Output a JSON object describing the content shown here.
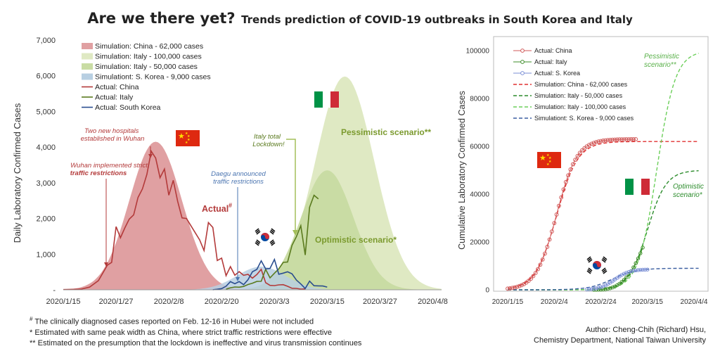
{
  "header": {
    "title_main": "Are we there yet?",
    "title_sub": "Trends prediction of COVID-19 outbreaks in South Korea and Italy"
  },
  "chart_data": [
    {
      "type": "area",
      "ylabel": "Daily Laboratory Confirmed Cases",
      "ylim": [
        0,
        7000
      ],
      "yticks": [
        "-",
        "1,000",
        "2,000",
        "3,000",
        "4,000",
        "5,000",
        "6,000",
        "7,000"
      ],
      "xticks": [
        "2020/1/15",
        "2020/1/27",
        "2020/2/8",
        "2020/2/20",
        "2020/3/3",
        "2020/3/15",
        "2020/3/27",
        "2020/4/8"
      ],
      "legend_position": "top-left",
      "legend": [
        "Simulation: China - 62,000 cases",
        "Simulation: Italy - 100,000 cases",
        "Simulation: Italy - 50,000 cases",
        "Simulationt: S. Korea - 9,000 cases",
        "Actual: China",
        "Actual: Italy",
        "Actual: South Korea"
      ],
      "simulations": [
        {
          "name": "Simulation: China - 62,000 cases",
          "peak_date": "2020/2/5",
          "peak": 4150,
          "total": 62000,
          "color": "#e0a0a2"
        },
        {
          "name": "Simulation: Italy - 100,000 cases",
          "peak_date": "2020/3/19",
          "peak": 5980,
          "total": 100000,
          "color": "#dfe9c3"
        },
        {
          "name": "Simulation: Italy - 50,000 cases",
          "peak_date": "2020/3/15",
          "peak": 3350,
          "total": 50000,
          "color": "#c9dca4"
        },
        {
          "name": "Simulationt: S. Korea - 9,000 cases",
          "peak_date": "2020/2/29",
          "peak": 650,
          "total": 9000,
          "color": "#b8cfe2"
        }
      ],
      "actual": [
        {
          "name": "Actual: China",
          "color": "#b33a3a",
          "points": [
            [
              "2020/1/15",
              5
            ],
            [
              "2020/1/19",
              17
            ],
            [
              "2020/1/21",
              77
            ],
            [
              "2020/1/23",
              259
            ],
            [
              "2020/1/25",
              688
            ],
            [
              "2020/1/26",
              769
            ],
            [
              "2020/1/27",
              1771
            ],
            [
              "2020/1/28",
              1459
            ],
            [
              "2020/1/29",
              1737
            ],
            [
              "2020/1/30",
              1982
            ],
            [
              "2020/1/31",
              2102
            ],
            [
              "2020/2/1",
              2590
            ],
            [
              "2020/2/2",
              2829
            ],
            [
              "2020/2/3",
              3235
            ],
            [
              "2020/2/4",
              3884
            ],
            [
              "2020/2/5",
              3694
            ],
            [
              "2020/2/6",
              3143
            ],
            [
              "2020/2/7",
              3385
            ],
            [
              "2020/2/8",
              2652
            ],
            [
              "2020/2/9",
              3070
            ],
            [
              "2020/2/10",
              2478
            ],
            [
              "2020/2/11",
              2015
            ],
            [
              "2020/2/12",
              2000
            ],
            [
              "2020/2/13",
              1800
            ],
            [
              "2020/2/14",
              1600
            ],
            [
              "2020/2/15",
              1400
            ],
            [
              "2020/2/16",
              1100
            ],
            [
              "2020/2/17",
              1886
            ],
            [
              "2020/2/18",
              1749
            ],
            [
              "2020/2/19",
              820
            ],
            [
              "2020/2/20",
              889
            ],
            [
              "2020/2/21",
              397
            ],
            [
              "2020/2/22",
              648
            ],
            [
              "2020/2/23",
              409
            ],
            [
              "2020/2/24",
              508
            ],
            [
              "2020/2/25",
              406
            ],
            [
              "2020/2/26",
              433
            ],
            [
              "2020/2/27",
              327
            ],
            [
              "2020/2/28",
              427
            ],
            [
              "2020/2/29",
              573
            ],
            [
              "2020/3/1",
              202
            ],
            [
              "2020/3/2",
              125
            ],
            [
              "2020/3/3",
              119
            ],
            [
              "2020/3/4",
              139
            ],
            [
              "2020/3/5",
              143
            ],
            [
              "2020/3/6",
              99
            ],
            [
              "2020/3/7",
              44
            ],
            [
              "2020/3/8",
              40
            ],
            [
              "2020/3/9",
              19
            ],
            [
              "2020/3/10",
              24
            ]
          ]
        },
        {
          "name": "Actual: Italy",
          "color": "#5a7a1e",
          "points": [
            [
              "2020/2/21",
              17
            ],
            [
              "2020/2/22",
              58
            ],
            [
              "2020/2/23",
              78
            ],
            [
              "2020/2/24",
              72
            ],
            [
              "2020/2/25",
              94
            ],
            [
              "2020/2/26",
              147
            ],
            [
              "2020/2/27",
              185
            ],
            [
              "2020/2/28",
              234
            ],
            [
              "2020/2/29",
              239
            ],
            [
              "2020/3/1",
              573
            ],
            [
              "2020/3/2",
              335
            ],
            [
              "2020/3/3",
              466
            ],
            [
              "2020/3/4",
              587
            ],
            [
              "2020/3/5",
              769
            ],
            [
              "2020/3/6",
              778
            ],
            [
              "2020/3/7",
              1247
            ],
            [
              "2020/3/8",
              1492
            ],
            [
              "2020/3/9",
              1797
            ],
            [
              "2020/3/10",
              977
            ],
            [
              "2020/3/11",
              2313
            ],
            [
              "2020/3/12",
              2651
            ],
            [
              "2020/3/13",
              2547
            ]
          ]
        },
        {
          "name": "Actual: South Korea",
          "color": "#2a4d8f",
          "points": [
            [
              "2020/2/18",
              1
            ],
            [
              "2020/2/19",
              15
            ],
            [
              "2020/2/20",
              34
            ],
            [
              "2020/2/21",
              100
            ],
            [
              "2020/2/22",
              229
            ],
            [
              "2020/2/23",
              169
            ],
            [
              "2020/2/24",
              231
            ],
            [
              "2020/2/25",
              144
            ],
            [
              "2020/2/26",
              284
            ],
            [
              "2020/2/27",
              505
            ],
            [
              "2020/2/28",
              571
            ],
            [
              "2020/2/29",
              813
            ],
            [
              "2020/3/1",
              586
            ],
            [
              "2020/3/2",
              599
            ],
            [
              "2020/3/3",
              851
            ],
            [
              "2020/3/4",
              435
            ],
            [
              "2020/3/5",
              467
            ],
            [
              "2020/3/6",
              505
            ],
            [
              "2020/3/7",
              448
            ],
            [
              "2020/3/8",
              273
            ],
            [
              "2020/3/9",
              164
            ],
            [
              "2020/3/10",
              35
            ],
            [
              "2020/3/11",
              242
            ],
            [
              "2020/3/12",
              114
            ],
            [
              "2020/3/13",
              110
            ],
            [
              "2020/3/14",
              107
            ],
            [
              "2020/3/15",
              76
            ]
          ]
        }
      ],
      "annotations": {
        "hospitals": "Two new hospitals established in Wuhan",
        "wuhan_line1": "Wuhan implemented strict",
        "wuhan_line2": "traffic restrictions",
        "daegu_line1": "Daegu announced",
        "daegu_line2": "traffic restrictions",
        "italy_line1": "Italy total",
        "italy_line2": "Lockdown!",
        "actual_label": "Actual",
        "actual_mark": "#",
        "pessimistic": "Pessimistic  scenario**",
        "optimistic": "Optimistic  scenario*"
      }
    },
    {
      "type": "line",
      "ylabel": "Cumulative Laboratory Confirmed Cases",
      "ylim": [
        0,
        100000
      ],
      "yticks": [
        "0",
        "20000",
        "40000",
        "60000",
        "80000",
        "100000"
      ],
      "xticks": [
        "2020/1/15",
        "2020/2/4",
        "2020/2/24",
        "2020/3/15",
        "2020/4/4"
      ],
      "legend_position": "top-left",
      "legend": [
        "Actual: China",
        "Actual: Italy",
        "Actual: S. Korea",
        "Simulation: China - 62,000 cases",
        "Simulation: Italy -  50,000 cases",
        "Simulation: Italy - 100,000 cases",
        "Simulationt: S. Korea - 9,000 cases"
      ],
      "actual": [
        {
          "name": "Actual: China",
          "color": "#d05858",
          "total": 63000,
          "mid_date": "2020/2/5",
          "end_date": "2020/3/10"
        },
        {
          "name": "Actual: Italy",
          "color": "#3c8c28",
          "end_date": "2020/3/13",
          "end_value": 17660
        },
        {
          "name": "Actual: S. Korea",
          "color": "#7b8fd6",
          "end_date": "2020/3/15",
          "end_value": 8162
        }
      ],
      "simulations": [
        {
          "name": "Simulation: China - 62,000 cases",
          "color": "#e03030",
          "total": 62000,
          "mid_date": "2020/2/5"
        },
        {
          "name": "Simulation: Italy -  50,000 cases",
          "color": "#2c8c2c",
          "total": 50000,
          "mid_date": "2020/3/15"
        },
        {
          "name": "Simulation: Italy - 100,000 cases",
          "color": "#6ccf5a",
          "total": 100000,
          "mid_date": "2020/3/19"
        },
        {
          "name": "Simulationt: S. Korea - 9,000 cases",
          "color": "#3a5ea0",
          "total": 9000,
          "mid_date": "2020/2/29"
        }
      ],
      "annotations": {
        "pess_line1": "Pessimistic",
        "pess_line2": "scenario**",
        "opt_line1": "Optimistic",
        "opt_line2": "scenario*"
      }
    }
  ],
  "footnotes": {
    "note1_mark": "#",
    "note1": "The clinically diagnosed cases reported on Feb. 12-16 in Hubei were not included",
    "note2": "*  Estimated with same peak width as China, where strict traffic restrictions were effective",
    "note3": "** Estimated on the presumption that the lockdown is ineffective and virus transmission continues"
  },
  "author": {
    "line1": "Author: Cheng-Chih (Richard) Hsu,",
    "line2": "Chemistry Department, National Taiwan University"
  },
  "flags": [
    "China flag",
    "Italy flag",
    "South Korea flag"
  ],
  "colors": {
    "china": "#c0504d",
    "italy_green": "#009246",
    "italy_red": "#ce2b37",
    "korea_red": "#cd2e3a",
    "korea_blue": "#0047a0"
  }
}
